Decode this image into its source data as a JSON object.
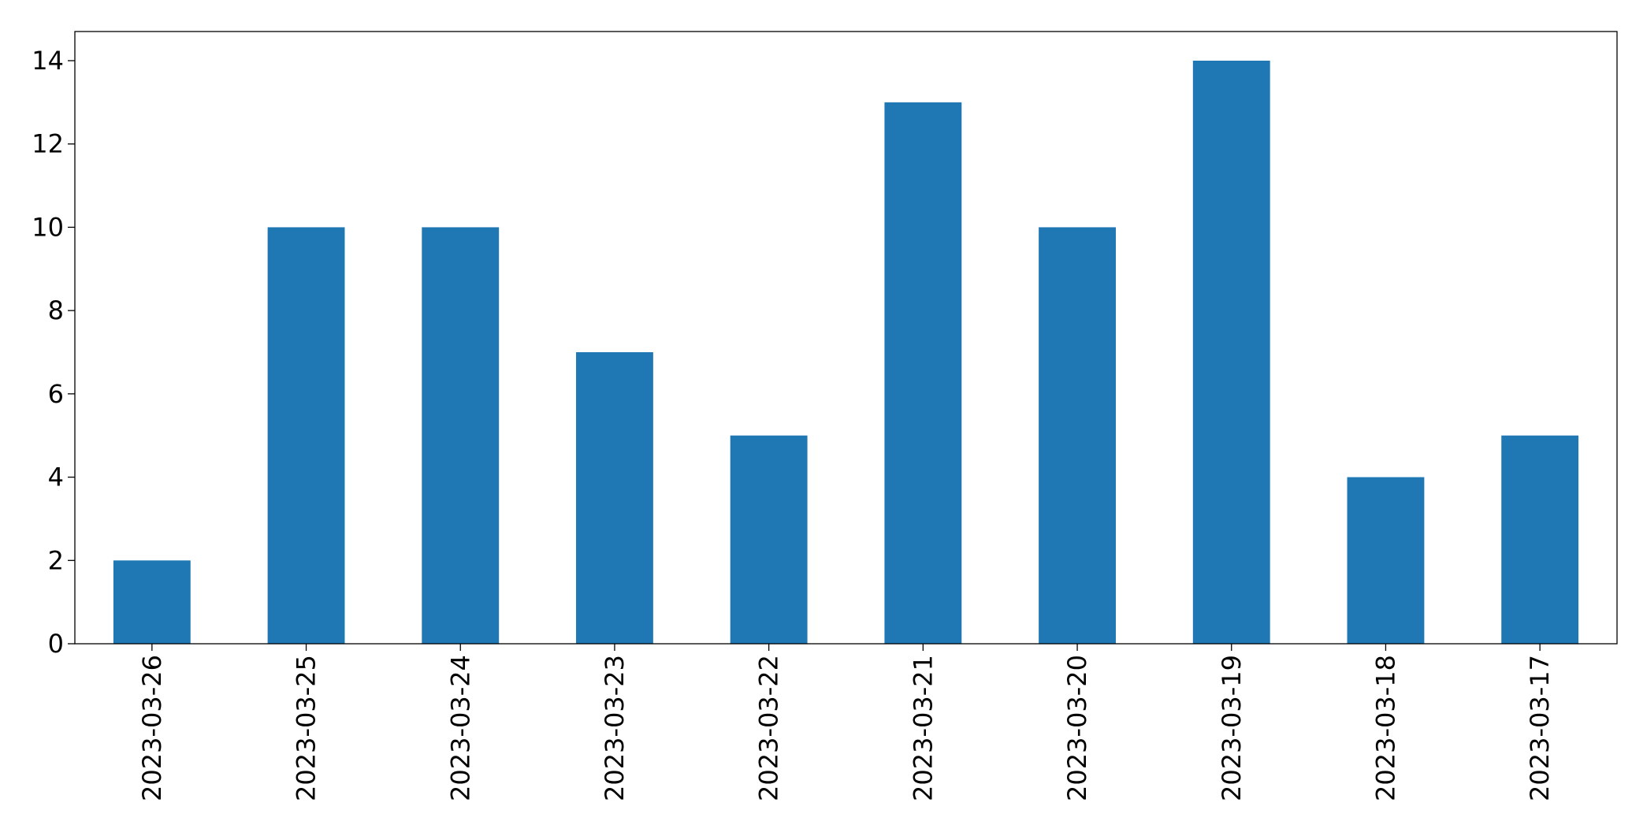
{
  "chart_data": {
    "type": "bar",
    "categories": [
      "2023-03-26",
      "2023-03-25",
      "2023-03-24",
      "2023-03-23",
      "2023-03-22",
      "2023-03-21",
      "2023-03-20",
      "2023-03-19",
      "2023-03-18",
      "2023-03-17"
    ],
    "values": [
      2,
      10,
      10,
      7,
      5,
      13,
      10,
      14,
      4,
      5
    ],
    "color": "#1f77b4",
    "ylim": [
      0,
      14.7
    ],
    "yticks": [
      0,
      2,
      4,
      6,
      8,
      10,
      12,
      14
    ],
    "grid": false
  }
}
